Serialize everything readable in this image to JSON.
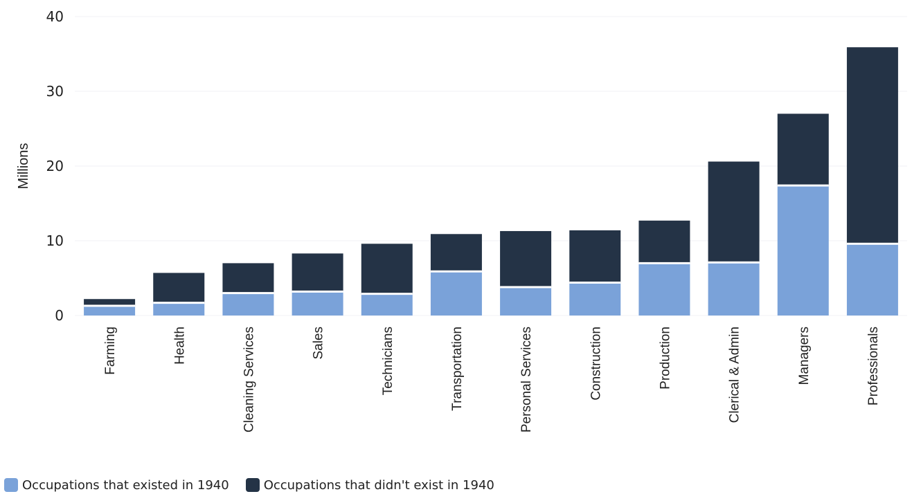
{
  "chart_data": {
    "type": "bar",
    "stacked": true,
    "ylabel": "Millions",
    "ylim": [
      0,
      40
    ],
    "yticks": [
      0,
      10,
      20,
      30,
      40
    ],
    "grid": true,
    "legend_position": "bottom-left",
    "categories": [
      "Farming",
      "Health",
      "Cleaning Services",
      "Sales",
      "Technicians",
      "Transportation",
      "Personal Services",
      "Construction",
      "Production",
      "Clerical & Admin",
      "Managers",
      "Professionals"
    ],
    "series": [
      {
        "name": "Occupations that existed in 1940",
        "color": "#7aa2d9",
        "values": [
          1.3,
          1.7,
          3.0,
          3.2,
          2.9,
          5.9,
          3.8,
          4.4,
          7.0,
          7.1,
          17.4,
          9.6
        ]
      },
      {
        "name": "Occupations that didn't exist in 1940",
        "color": "#243346",
        "values": [
          0.9,
          4.0,
          4.0,
          5.1,
          6.7,
          5.0,
          7.5,
          7.0,
          5.7,
          13.5,
          9.6,
          26.3
        ]
      }
    ]
  }
}
